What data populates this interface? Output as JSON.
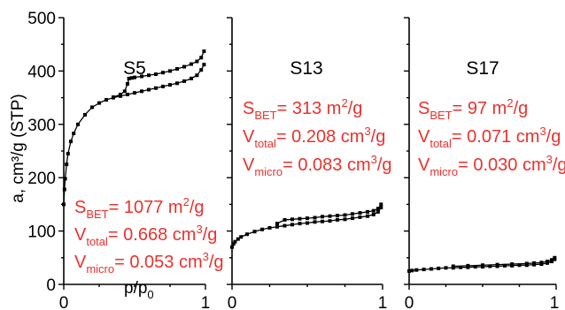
{
  "colors": {
    "annotation": "#e8322e",
    "axis": "#000000",
    "series": "#000000"
  },
  "ylabel": "a, cm³/g (STP)",
  "xlabel_main": "p/p",
  "xlabel_sub": "0",
  "chart_data": [
    {
      "type": "scatter",
      "title": "S5",
      "xlim": [
        0,
        1
      ],
      "ylim": [
        0,
        500
      ],
      "yticks": [
        "0",
        "100",
        "200",
        "300",
        "400",
        "500"
      ],
      "xticks": [
        "0",
        "1"
      ],
      "series": [
        {
          "x": [
            0.0,
            0.005,
            0.01,
            0.02,
            0.03,
            0.05,
            0.07,
            0.1,
            0.15,
            0.2,
            0.25,
            0.3,
            0.35,
            0.4,
            0.45,
            0.5,
            0.55,
            0.6,
            0.65,
            0.7,
            0.75,
            0.8,
            0.85,
            0.9,
            0.94,
            0.97,
            0.99
          ],
          "y": [
            150,
            178,
            198,
            225,
            245,
            268,
            283,
            300,
            318,
            332,
            340,
            346,
            350,
            353,
            356,
            359,
            362,
            365,
            368,
            371,
            374,
            377,
            381,
            386,
            392,
            402,
            412
          ]
        },
        {
          "x": [
            0.99,
            0.97,
            0.94,
            0.9,
            0.85,
            0.8,
            0.75,
            0.7,
            0.65,
            0.6,
            0.55,
            0.5,
            0.48,
            0.46,
            0.45,
            0.43,
            0.4,
            0.35
          ],
          "y": [
            437,
            425,
            418,
            413,
            408,
            404,
            400,
            397,
            394,
            392,
            390,
            388,
            387,
            386,
            376,
            362,
            356,
            351
          ]
        }
      ],
      "annotations": {
        "sbet": {
          "label": "S",
          "sub": "BET",
          "text": "= 1077 m",
          "sup": "2",
          "tail": "/g"
        },
        "vtotal": {
          "label": "V",
          "sub": "total",
          "text": "= 0.668 cm",
          "sup": "3",
          "tail": "/g"
        },
        "vmicro": {
          "label": "V",
          "sub": "micro",
          "text": "= 0.053 cm",
          "sup": "3",
          "tail": "/g"
        }
      }
    },
    {
      "type": "scatter",
      "title": "S13",
      "xlim": [
        0,
        1
      ],
      "ylim": [
        0,
        500
      ],
      "xticks": [
        "0",
        "1"
      ],
      "series": [
        {
          "x": [
            0.0,
            0.01,
            0.02,
            0.04,
            0.06,
            0.1,
            0.15,
            0.2,
            0.25,
            0.3,
            0.35,
            0.4,
            0.45,
            0.5,
            0.55,
            0.6,
            0.65,
            0.7,
            0.75,
            0.8,
            0.85,
            0.9,
            0.94,
            0.97,
            0.99
          ],
          "y": [
            70,
            76,
            80,
            85,
            89,
            94,
            99,
            103,
            106,
            108,
            110,
            112,
            114,
            115,
            117,
            118,
            119,
            121,
            122,
            124,
            126,
            128,
            131,
            136,
            144
          ]
        },
        {
          "x": [
            0.99,
            0.97,
            0.94,
            0.9,
            0.85,
            0.8,
            0.75,
            0.7,
            0.65,
            0.6,
            0.55,
            0.5,
            0.45,
            0.4,
            0.35,
            0.3
          ],
          "y": [
            150,
            142,
            138,
            136,
            134,
            132,
            130,
            129,
            128,
            127,
            125,
            124,
            123,
            122,
            121,
            114
          ]
        }
      ],
      "annotations": {
        "sbet": {
          "label": "S",
          "sub": "BET",
          "text": "= 313 m",
          "sup": "2",
          "tail": "/g"
        },
        "vtotal": {
          "label": "V",
          "sub": "total",
          "text": "= 0.208 cm",
          "sup": "3",
          "tail": "/g"
        },
        "vmicro": {
          "label": "V",
          "sub": "micro",
          "text": "= 0.083 cm",
          "sup": "3",
          "tail": "/g"
        }
      }
    },
    {
      "type": "scatter",
      "title": "S17",
      "xlim": [
        0,
        1
      ],
      "ylim": [
        0,
        500
      ],
      "xticks": [
        "0",
        "1"
      ],
      "series": [
        {
          "x": [
            0.0,
            0.02,
            0.05,
            0.1,
            0.15,
            0.2,
            0.25,
            0.3,
            0.35,
            0.4,
            0.45,
            0.5,
            0.55,
            0.6,
            0.65,
            0.7,
            0.75,
            0.8,
            0.85,
            0.9,
            0.94,
            0.97,
            0.99
          ],
          "y": [
            25,
            26,
            27,
            28,
            29,
            30,
            31,
            31,
            32,
            32,
            33,
            33,
            34,
            34,
            35,
            35,
            36,
            36,
            37,
            38,
            40,
            43,
            47
          ]
        },
        {
          "x": [
            0.99,
            0.97,
            0.94,
            0.9,
            0.85,
            0.8,
            0.7,
            0.6,
            0.5,
            0.4,
            0.3
          ],
          "y": [
            50,
            46,
            43,
            41,
            40,
            39,
            38,
            37,
            36,
            35,
            34
          ]
        }
      ],
      "annotations": {
        "sbet": {
          "label": "S",
          "sub": "BET",
          "text": "= 97 m",
          "sup": "2",
          "tail": "/g"
        },
        "vtotal": {
          "label": "V",
          "sub": "total",
          "text": "= 0.071 cm",
          "sup": "3",
          "tail": "/g"
        },
        "vmicro": {
          "label": "V",
          "sub": "micro",
          "text": "= 0.030 cm",
          "sup": "3",
          "tail": "/g"
        }
      }
    }
  ]
}
